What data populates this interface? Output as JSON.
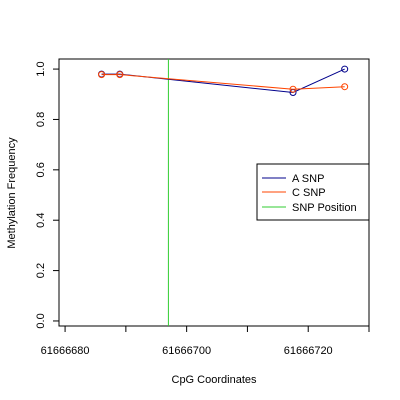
{
  "chart_data": {
    "type": "line",
    "title": "",
    "xlabel": "CpG Coordinates",
    "ylabel": "Methylation Frequency",
    "xlim": [
      61666679,
      61666730
    ],
    "ylim": [
      -0.02,
      1.04
    ],
    "x_ticks": [
      61666680,
      61666700,
      61666720
    ],
    "y_ticks": [
      0.0,
      0.2,
      0.4,
      0.6,
      0.8,
      1.0
    ],
    "y_tick_labels": [
      "0.0",
      "0.2",
      "0.4",
      "0.6",
      "0.8",
      "1.0"
    ],
    "grid": false,
    "legend_position": "right",
    "series": [
      {
        "name": "A SNP",
        "color": "#00008B",
        "points": [
          {
            "x": 61666686,
            "y": 0.98
          },
          {
            "x": 61666689,
            "y": 0.98
          },
          {
            "x": 61666717.5,
            "y": 0.907
          },
          {
            "x": 61666726,
            "y": 1.0
          }
        ]
      },
      {
        "name": "C SNP",
        "color": "#FF4500",
        "points": [
          {
            "x": 61666686,
            "y": 0.978
          },
          {
            "x": 61666689,
            "y": 0.978
          },
          {
            "x": 61666717.5,
            "y": 0.92
          },
          {
            "x": 61666726,
            "y": 0.93
          }
        ]
      }
    ],
    "snp_position": {
      "name": "SNP Position",
      "color": "#32CD32",
      "x": 61666697
    }
  }
}
